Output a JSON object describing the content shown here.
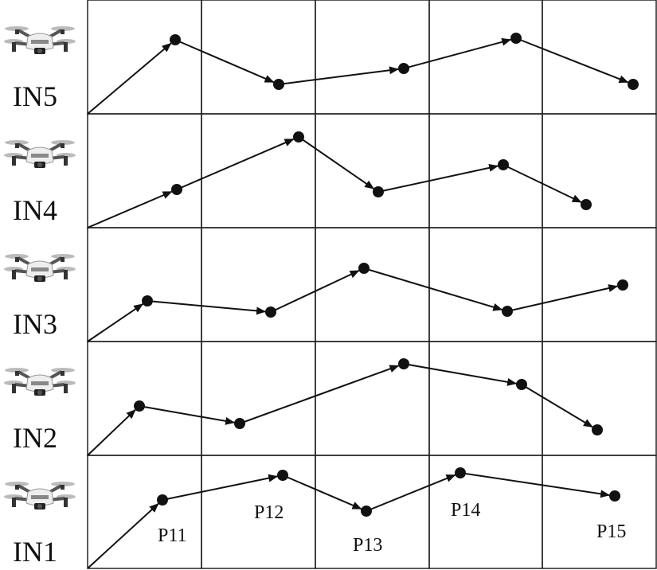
{
  "rows": [
    "IN5",
    "IN4",
    "IN3",
    "IN2",
    "IN1"
  ],
  "point_labels": [
    "P11",
    "P12",
    "P13",
    "P14",
    "P15"
  ]
}
